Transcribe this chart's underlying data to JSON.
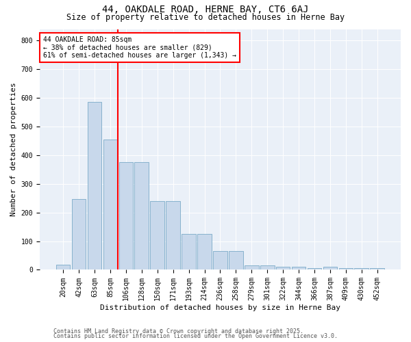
{
  "title1": "44, OAKDALE ROAD, HERNE BAY, CT6 6AJ",
  "title2": "Size of property relative to detached houses in Herne Bay",
  "xlabel": "Distribution of detached houses by size in Herne Bay",
  "ylabel": "Number of detached properties",
  "categories": [
    "20sqm",
    "42sqm",
    "63sqm",
    "85sqm",
    "106sqm",
    "128sqm",
    "150sqm",
    "171sqm",
    "193sqm",
    "214sqm",
    "236sqm",
    "258sqm",
    "279sqm",
    "301sqm",
    "322sqm",
    "344sqm",
    "366sqm",
    "387sqm",
    "409sqm",
    "430sqm",
    "452sqm"
  ],
  "values": [
    18,
    248,
    585,
    455,
    375,
    375,
    240,
    240,
    125,
    125,
    65,
    65,
    15,
    15,
    10,
    10,
    5,
    10,
    5,
    5,
    5
  ],
  "bar_color": "#c8d8eb",
  "bar_edge_color": "#7aaac8",
  "redline_index": 3.5,
  "annotation_text": "44 OAKDALE ROAD: 85sqm\n← 38% of detached houses are smaller (829)\n61% of semi-detached houses are larger (1,343) →",
  "annotation_box_color": "white",
  "annotation_edge_color": "red",
  "redline_color": "red",
  "bg_color": "#eaf0f8",
  "footer1": "Contains HM Land Registry data © Crown copyright and database right 2025.",
  "footer2": "Contains public sector information licensed under the Open Government Licence v3.0.",
  "ylim": [
    0,
    840
  ],
  "yticks": [
    0,
    100,
    200,
    300,
    400,
    500,
    600,
    700,
    800
  ],
  "title1_fontsize": 10,
  "title2_fontsize": 8.5,
  "ylabel_fontsize": 8,
  "xlabel_fontsize": 8,
  "tick_fontsize": 7,
  "footer_fontsize": 6
}
